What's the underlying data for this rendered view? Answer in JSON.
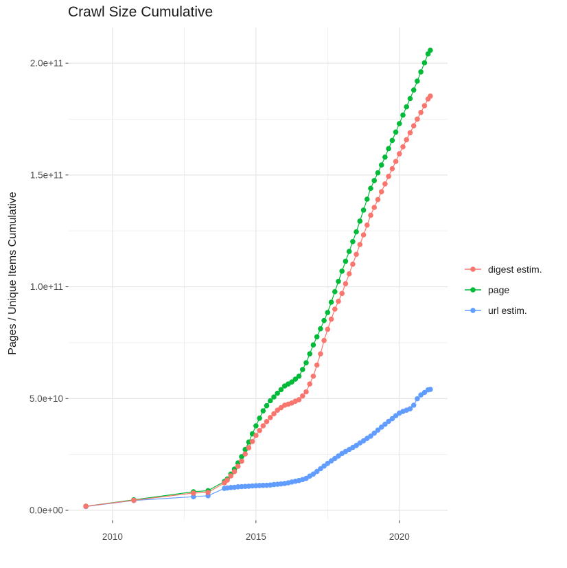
{
  "title": "Crawl Size Cumulative",
  "colors": {
    "digest_estim": "#F8766D",
    "page": "#00BA38",
    "url_estim": "#619CFF",
    "grid_major": "#e3e3e3",
    "grid_minor": "#efefef",
    "axis_text": "#4d4d4d",
    "tick_mark": "#333333",
    "title_text": "#1a1a1a",
    "background": "#ffffff"
  },
  "chart_data": {
    "type": "line",
    "title": "Crawl Size Cumulative",
    "xlabel": "",
    "ylabel": "Pages / Unique Items Cumulative",
    "x_unit": "year",
    "y_unit": "items, values stored in billions (1e9)",
    "grid": true,
    "legend_position": "right",
    "xlim": [
      2008.47,
      2021.68
    ],
    "ylim": [
      -4.3,
      216
    ],
    "x_major_ticks": [
      {
        "value": 2010,
        "label": "2010"
      },
      {
        "value": 2015,
        "label": "2015"
      },
      {
        "value": 2020,
        "label": "2020"
      }
    ],
    "x_minor_ticks": [
      2012.5,
      2017.5
    ],
    "y_major_ticks": [
      {
        "value": 0,
        "label": "0.0e+00"
      },
      {
        "value": 50,
        "label": "5.0e+10"
      },
      {
        "value": 100,
        "label": "1.0e+11"
      },
      {
        "value": 150,
        "label": "1.5e+11"
      },
      {
        "value": 200,
        "label": "2.0e+11"
      }
    ],
    "y_minor_ticks": [
      25,
      75,
      125,
      175
    ],
    "series": [
      {
        "id": "digest-estim",
        "name": "digest estim.",
        "color": "#F8766D",
        "points": [
          [
            2009.07,
            1.8
          ],
          [
            2010.74,
            4.5
          ],
          [
            2012.82,
            7.7
          ],
          [
            2013.33,
            8.0
          ],
          [
            2013.9,
            12.3
          ],
          [
            2014.0,
            13.5
          ],
          [
            2014.125,
            15.4
          ],
          [
            2014.25,
            17.3
          ],
          [
            2014.375,
            19.7
          ],
          [
            2014.5,
            22.0
          ],
          [
            2014.625,
            25.2
          ],
          [
            2014.75,
            28.0
          ],
          [
            2014.875,
            30.8
          ],
          [
            2015.0,
            33.5
          ],
          [
            2015.125,
            35.7
          ],
          [
            2015.25,
            37.8
          ],
          [
            2015.375,
            39.7
          ],
          [
            2015.5,
            41.5
          ],
          [
            2015.625,
            43.2
          ],
          [
            2015.75,
            44.8
          ],
          [
            2015.875,
            45.9
          ],
          [
            2016.0,
            47.0
          ],
          [
            2016.125,
            47.5
          ],
          [
            2016.25,
            48.0
          ],
          [
            2016.375,
            48.8
          ],
          [
            2016.5,
            49.5
          ],
          [
            2016.625,
            51.2
          ],
          [
            2016.75,
            53.0
          ],
          [
            2016.875,
            56.5
          ],
          [
            2017.0,
            60.0
          ],
          [
            2017.125,
            65.0
          ],
          [
            2017.25,
            70.0
          ],
          [
            2017.375,
            76.0
          ],
          [
            2017.5,
            81.0
          ],
          [
            2017.625,
            85.5
          ],
          [
            2017.75,
            90.0
          ],
          [
            2017.875,
            93.5
          ],
          [
            2018.0,
            97.0
          ],
          [
            2018.125,
            101.4
          ],
          [
            2018.25,
            105.8
          ],
          [
            2018.375,
            110.1
          ],
          [
            2018.5,
            114.5
          ],
          [
            2018.625,
            118.9
          ],
          [
            2018.75,
            123.2
          ],
          [
            2018.875,
            127.6
          ],
          [
            2019.0,
            132.0
          ],
          [
            2019.125,
            135.5
          ],
          [
            2019.25,
            139.0
          ],
          [
            2019.375,
            142.5
          ],
          [
            2019.5,
            146.0
          ],
          [
            2019.625,
            149.4
          ],
          [
            2019.75,
            152.8
          ],
          [
            2019.875,
            156.1
          ],
          [
            2020.0,
            159.5
          ],
          [
            2020.125,
            162.6
          ],
          [
            2020.25,
            165.8
          ],
          [
            2020.375,
            168.9
          ],
          [
            2020.5,
            172.0
          ],
          [
            2020.625,
            175.0
          ],
          [
            2020.75,
            178.0
          ],
          [
            2020.875,
            181.0
          ],
          [
            2021.0,
            184.0
          ],
          [
            2021.08,
            185.3
          ]
        ]
      },
      {
        "id": "page",
        "name": "page",
        "color": "#00BA38",
        "points": [
          [
            2009.07,
            1.8
          ],
          [
            2010.74,
            4.7
          ],
          [
            2012.82,
            8.3
          ],
          [
            2013.33,
            8.8
          ],
          [
            2013.9,
            12.9
          ],
          [
            2014.0,
            14.0
          ],
          [
            2014.125,
            16.2
          ],
          [
            2014.25,
            18.4
          ],
          [
            2014.375,
            21.2
          ],
          [
            2014.5,
            24.0
          ],
          [
            2014.625,
            27.2
          ],
          [
            2014.75,
            30.5
          ],
          [
            2014.875,
            34.2
          ],
          [
            2015.0,
            37.8
          ],
          [
            2015.125,
            41.2
          ],
          [
            2015.25,
            44.5
          ],
          [
            2015.375,
            46.8
          ],
          [
            2015.5,
            49.0
          ],
          [
            2015.625,
            50.7
          ],
          [
            2015.75,
            52.4
          ],
          [
            2015.875,
            54.0
          ],
          [
            2016.0,
            55.6
          ],
          [
            2016.125,
            56.5
          ],
          [
            2016.25,
            57.4
          ],
          [
            2016.375,
            58.7
          ],
          [
            2016.5,
            60.0
          ],
          [
            2016.625,
            63.0
          ],
          [
            2016.75,
            66.0
          ],
          [
            2016.875,
            70.0
          ],
          [
            2017.0,
            74.0
          ],
          [
            2017.125,
            77.6
          ],
          [
            2017.25,
            81.2
          ],
          [
            2017.375,
            84.9
          ],
          [
            2017.5,
            88.5
          ],
          [
            2017.625,
            93.1
          ],
          [
            2017.75,
            97.8
          ],
          [
            2017.875,
            102.4
          ],
          [
            2018.0,
            107.0
          ],
          [
            2018.125,
            111.4
          ],
          [
            2018.25,
            115.8
          ],
          [
            2018.375,
            120.2
          ],
          [
            2018.5,
            124.6
          ],
          [
            2018.625,
            129.4
          ],
          [
            2018.75,
            134.3
          ],
          [
            2018.875,
            139.2
          ],
          [
            2019.0,
            144.0
          ],
          [
            2019.125,
            147.5
          ],
          [
            2019.25,
            151.0
          ],
          [
            2019.375,
            154.5
          ],
          [
            2019.5,
            158.0
          ],
          [
            2019.625,
            161.8
          ],
          [
            2019.75,
            165.5
          ],
          [
            2019.875,
            169.2
          ],
          [
            2020.0,
            173.0
          ],
          [
            2020.125,
            176.8
          ],
          [
            2020.25,
            180.5
          ],
          [
            2020.375,
            184.2
          ],
          [
            2020.5,
            188.0
          ],
          [
            2020.625,
            192.0
          ],
          [
            2020.75,
            196.1
          ],
          [
            2020.875,
            200.2
          ],
          [
            2021.0,
            204.2
          ],
          [
            2021.08,
            205.8
          ]
        ]
      },
      {
        "id": "url-estim",
        "name": "url estim.",
        "color": "#619CFF",
        "points": [
          [
            2009.07,
            1.7
          ],
          [
            2010.74,
            4.4
          ],
          [
            2012.82,
            6.1
          ],
          [
            2013.33,
            6.5
          ],
          [
            2013.9,
            9.8
          ],
          [
            2014.0,
            10.0
          ],
          [
            2014.125,
            10.2
          ],
          [
            2014.25,
            10.3
          ],
          [
            2014.375,
            10.5
          ],
          [
            2014.5,
            10.6
          ],
          [
            2014.625,
            10.7
          ],
          [
            2014.75,
            10.8
          ],
          [
            2014.875,
            10.9
          ],
          [
            2015.0,
            11.0
          ],
          [
            2015.125,
            11.1
          ],
          [
            2015.25,
            11.15
          ],
          [
            2015.375,
            11.2
          ],
          [
            2015.5,
            11.3
          ],
          [
            2015.625,
            11.5
          ],
          [
            2015.75,
            11.65
          ],
          [
            2015.875,
            11.8
          ],
          [
            2016.0,
            12.0
          ],
          [
            2016.125,
            12.3
          ],
          [
            2016.25,
            12.65
          ],
          [
            2016.375,
            13.0
          ],
          [
            2016.5,
            13.3
          ],
          [
            2016.625,
            13.75
          ],
          [
            2016.75,
            14.3
          ],
          [
            2016.875,
            15.3
          ],
          [
            2017.0,
            16.2
          ],
          [
            2017.125,
            17.4
          ],
          [
            2017.25,
            18.6
          ],
          [
            2017.375,
            19.8
          ],
          [
            2017.5,
            21.0
          ],
          [
            2017.625,
            22.1
          ],
          [
            2017.75,
            23.2
          ],
          [
            2017.875,
            24.3
          ],
          [
            2018.0,
            25.4
          ],
          [
            2018.125,
            26.3
          ],
          [
            2018.25,
            27.2
          ],
          [
            2018.375,
            28.1
          ],
          [
            2018.5,
            29.0
          ],
          [
            2018.625,
            30.1
          ],
          [
            2018.75,
            31.1
          ],
          [
            2018.875,
            32.2
          ],
          [
            2019.0,
            33.2
          ],
          [
            2019.125,
            34.5
          ],
          [
            2019.25,
            35.9
          ],
          [
            2019.375,
            37.2
          ],
          [
            2019.5,
            38.5
          ],
          [
            2019.625,
            39.8
          ],
          [
            2019.75,
            41.0
          ],
          [
            2019.875,
            42.3
          ],
          [
            2020.0,
            43.5
          ],
          [
            2020.125,
            44.2
          ],
          [
            2020.25,
            44.8
          ],
          [
            2020.375,
            45.4
          ],
          [
            2020.5,
            47.0
          ],
          [
            2020.625,
            49.9
          ],
          [
            2020.75,
            51.6
          ],
          [
            2020.875,
            52.7
          ],
          [
            2021.0,
            53.9
          ],
          [
            2021.08,
            54.1
          ]
        ]
      }
    ]
  },
  "legend": {
    "items": [
      {
        "label": "digest estim."
      },
      {
        "label": "page"
      },
      {
        "label": "url estim."
      }
    ]
  }
}
